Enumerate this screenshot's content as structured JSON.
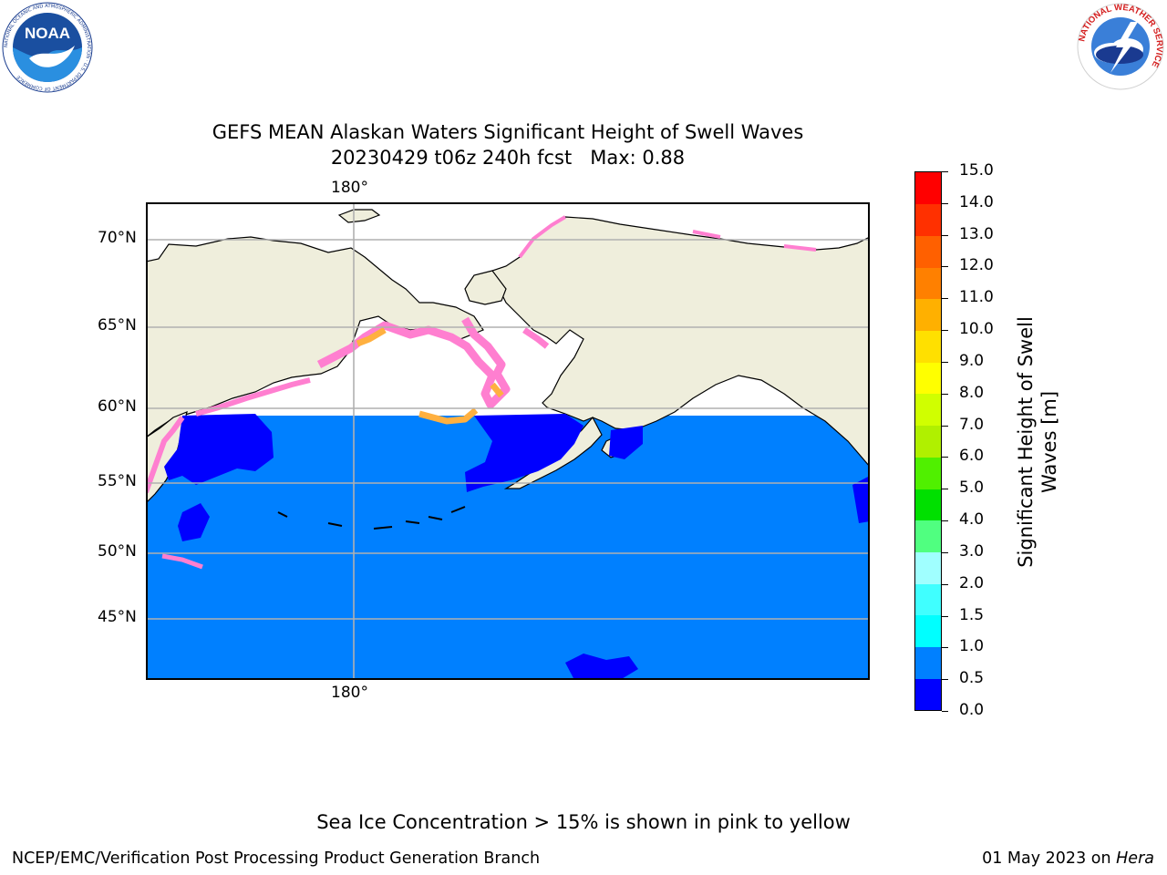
{
  "header": {
    "title_line1": "GEFS MEAN Alaskan Waters Significant Height of Swell Waves",
    "title_line2": "20230429 t06z 240h fcst   Max: 0.88"
  },
  "logos": {
    "noaa_text": "NOAA",
    "noaa_ring": "NATIONAL OCEANIC AND ATMOSPHERIC ADMINISTRATION · U.S. DEPARTMENT OF COMMERCE",
    "nws_ring": "NATIONAL WEATHER SERVICE"
  },
  "map": {
    "longitude_labels": [
      "180°",
      "180°"
    ],
    "latitude_labels": [
      "70°N",
      "65°N",
      "60°N",
      "55°N",
      "50°N",
      "45°N"
    ],
    "colors": {
      "land": "#efeedc",
      "ocean": "#0080ff",
      "calm": "#0000ff",
      "ice": "#ffffff",
      "ice_edge_pink": "#ff7fd0",
      "ice_edge_orange": "#ffb040"
    }
  },
  "colorbar": {
    "label_line1": "Significant Height of Swell",
    "label_line2": "Waves [m]",
    "ticks": [
      "0.0",
      "0.5",
      "1.0",
      "1.5",
      "2.0",
      "3.0",
      "4.0",
      "5.0",
      "6.0",
      "7.0",
      "8.0",
      "9.0",
      "10.0",
      "11.0",
      "12.0",
      "13.0",
      "14.0",
      "15.0"
    ],
    "colors": [
      "#0000ff",
      "#0080ff",
      "#00ffff",
      "#40ffff",
      "#a0ffff",
      "#50ff80",
      "#00e000",
      "#50f000",
      "#b0f000",
      "#d0ff00",
      "#ffff00",
      "#ffe000",
      "#ffb000",
      "#ff8000",
      "#ff6000",
      "#ff3000",
      "#ff0000"
    ]
  },
  "footer": {
    "note": "Sea Ice Concentration > 15% is shown in pink to yellow",
    "producer": "NCEP/EMC/Verification Post Processing Product Generation Branch",
    "date": "01 May 2023 on ",
    "machine": "Hera"
  }
}
